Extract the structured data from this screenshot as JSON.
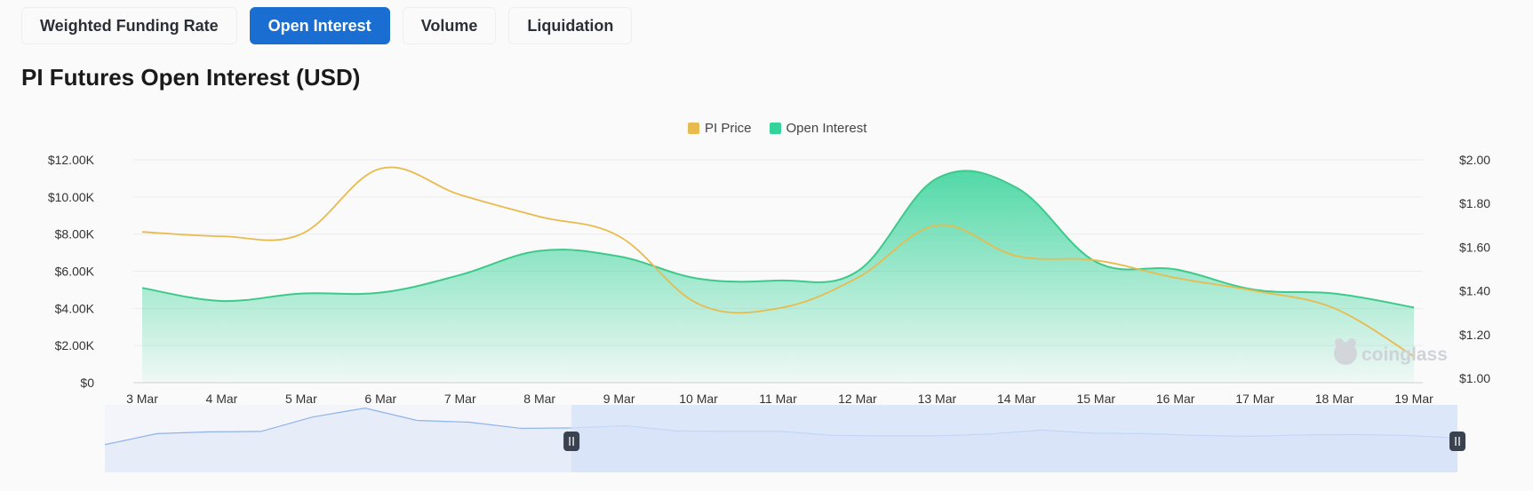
{
  "tabs": [
    {
      "label": "Weighted Funding Rate",
      "active": false
    },
    {
      "label": "Open Interest",
      "active": true
    },
    {
      "label": "Volume",
      "active": false
    },
    {
      "label": "Liquidation",
      "active": false
    }
  ],
  "title": "PI Futures Open Interest (USD)",
  "legend": {
    "price_label": "PI Price",
    "oi_label": "Open Interest"
  },
  "watermark": "coinglass",
  "colors": {
    "price": "#e8bb4e",
    "oi_line": "#3ec98b",
    "oi_fill": "#34d399",
    "accent": "#1b6ed1",
    "zoom_line": "#8fb3ec",
    "zoom_fill": "#e6ecf8",
    "zoom_selected": "#d6e2fa"
  },
  "chart_data": {
    "type": "area",
    "categories": [
      "3 Mar",
      "4 Mar",
      "5 Mar",
      "6 Mar",
      "7 Mar",
      "8 Mar",
      "9 Mar",
      "10 Mar",
      "11 Mar",
      "12 Mar",
      "13 Mar",
      "14 Mar",
      "15 Mar",
      "16 Mar",
      "17 Mar",
      "18 Mar",
      "19 Mar"
    ],
    "series": [
      {
        "name": "Open Interest",
        "axis": "left",
        "type": "area",
        "values": [
          5100,
          4400,
          4800,
          4850,
          5800,
          7100,
          6800,
          5600,
          5500,
          6000,
          11000,
          10500,
          6500,
          6100,
          5000,
          4800,
          4050
        ]
      },
      {
        "name": "PI Price",
        "axis": "right",
        "type": "line",
        "values": [
          1.67,
          1.65,
          1.66,
          1.96,
          1.84,
          1.74,
          1.65,
          1.34,
          1.32,
          1.46,
          1.7,
          1.56,
          1.54,
          1.46,
          1.4,
          1.32,
          1.1
        ]
      }
    ],
    "y_left": {
      "ticks": [
        "$0",
        "$2.00K",
        "$4.00K",
        "$6.00K",
        "$8.00K",
        "$10.00K",
        "$12.00K"
      ],
      "range": [
        0,
        12000
      ]
    },
    "y_right": {
      "ticks": [
        "$1.00",
        "$1.20",
        "$1.40",
        "$1.60",
        "$1.80",
        "$2.00"
      ],
      "range": [
        0.98,
        2.0
      ]
    },
    "overview": {
      "values": [
        6300,
        8800,
        9200,
        9300,
        12600,
        14600,
        11800,
        11400,
        10000,
        10100,
        10600,
        9400,
        9300,
        9300,
        8400,
        8300,
        8300,
        8700,
        9600,
        8900,
        8800,
        8400,
        8200,
        8500,
        8600,
        8400,
        7800
      ],
      "selected_range": [
        0.345,
        1.0
      ]
    },
    "grid": true,
    "legend_position": "top-center"
  }
}
